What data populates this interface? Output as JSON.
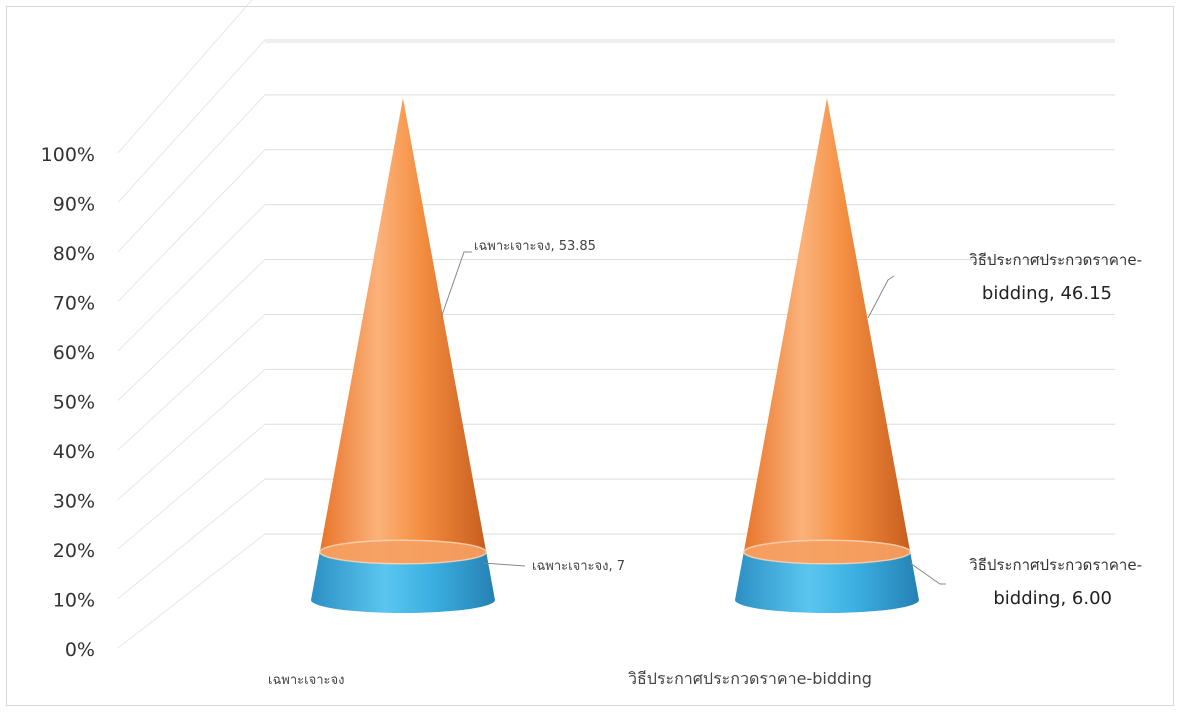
{
  "chart_data": {
    "type": "bar",
    "subtype": "3d-cone-stacked-100",
    "categories": [
      "เฉพาะเจาะจง",
      "วิธีประกาศประกวดราคาe-bidding"
    ],
    "series": [
      {
        "name": "",
        "values": [
          7,
          6.0
        ],
        "color": "#39a9dc"
      },
      {
        "name": "",
        "values": [
          53.85,
          46.15
        ],
        "color": "#f08a3a"
      }
    ],
    "ylim": [
      0,
      100
    ],
    "yticks": [
      "0%",
      "10%",
      "20%",
      "30%",
      "40%",
      "50%",
      "60%",
      "70%",
      "80%",
      "90%",
      "100%"
    ],
    "grid": true,
    "legend": "none",
    "data_labels": [
      {
        "category_index": 0,
        "series_index": 1,
        "line1": "เฉพาะเจาะจง, 53.85",
        "line2": ""
      },
      {
        "category_index": 0,
        "series_index": 0,
        "line1": "เฉพาะเจาะจง, 7",
        "line2": ""
      },
      {
        "category_index": 1,
        "series_index": 1,
        "line1": "วิธีประกาศประกวดราคาe-",
        "line2": "bidding,  46.15"
      },
      {
        "category_index": 1,
        "series_index": 0,
        "line1": "วิธีประกาศประกวดราคาe-",
        "line2": "bidding,  6.00"
      }
    ]
  }
}
